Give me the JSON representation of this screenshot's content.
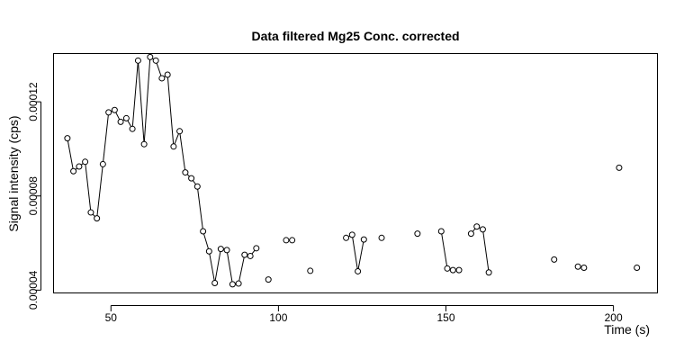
{
  "chart_data": {
    "type": "line",
    "title": "Data filtered Mg25 Conc. corrected",
    "xlabel": "Time (s)",
    "ylabel": "Signal intensity (cps)",
    "xlim": [
      33,
      213
    ],
    "ylim": [
      3.9e-05,
      0.0001403
    ],
    "xticks": [
      50,
      100,
      150,
      200
    ],
    "yticks": [
      4e-05,
      8e-05,
      0.00012
    ],
    "ytick_labels": [
      "0.00004",
      "0.00008",
      "0.00012"
    ],
    "grid": false,
    "legend": "none",
    "series": [
      {
        "name": "",
        "marker": "open-circle",
        "points": [
          [
            37.0,
            0.0001045
          ],
          [
            38.8,
            9.05e-05
          ],
          [
            40.5,
            9.25e-05
          ],
          [
            42.3,
            9.45e-05
          ],
          [
            44.0,
            7.3e-05
          ],
          [
            45.8,
            7.05e-05
          ],
          [
            47.6,
            9.35e-05
          ],
          [
            49.3,
            0.0001155
          ],
          [
            51.1,
            0.0001165
          ],
          [
            52.9,
            0.0001115
          ],
          [
            54.6,
            0.000113
          ],
          [
            56.4,
            0.0001085
          ],
          [
            58.1,
            0.0001375
          ],
          [
            59.9,
            0.000102
          ],
          [
            61.7,
            0.000139
          ],
          [
            63.4,
            0.0001375
          ],
          [
            65.2,
            0.00013
          ],
          [
            66.9,
            0.0001315
          ],
          [
            68.7,
            0.000101
          ],
          [
            70.5,
            0.0001075
          ],
          [
            72.2,
            9e-05
          ],
          [
            74.0,
            8.75e-05
          ],
          [
            75.8,
            8.4e-05
          ],
          [
            77.5,
            6.5e-05
          ],
          [
            79.3,
            5.65e-05
          ],
          [
            81.0,
            4.3e-05
          ],
          [
            82.8,
            5.75e-05
          ],
          [
            84.6,
            5.7e-05
          ],
          [
            86.3,
            4.25e-05
          ],
          [
            88.1,
            4.28e-05
          ],
          [
            89.9,
            5.5e-05
          ],
          [
            91.6,
            5.45e-05
          ],
          [
            93.4,
            5.78e-05
          ]
        ]
      },
      {
        "name": "",
        "marker": "open-circle",
        "points": [
          [
            97.0,
            4.45e-05
          ]
        ]
      },
      {
        "name": "",
        "marker": "open-circle",
        "points": [
          [
            102.3,
            6.12e-05
          ],
          [
            104.1,
            6.12e-05
          ]
        ]
      },
      {
        "name": "",
        "marker": "open-circle",
        "points": [
          [
            109.5,
            4.82e-05
          ]
        ]
      },
      {
        "name": "",
        "marker": "open-circle",
        "points": [
          [
            120.2,
            6.22e-05
          ],
          [
            122.0,
            6.35e-05
          ],
          [
            123.7,
            4.8e-05
          ],
          [
            125.5,
            6.15e-05
          ]
        ]
      },
      {
        "name": "",
        "marker": "open-circle",
        "points": [
          [
            130.8,
            6.22e-05
          ]
        ]
      },
      {
        "name": "",
        "marker": "open-circle",
        "points": [
          [
            141.5,
            6.4e-05
          ]
        ]
      },
      {
        "name": "",
        "marker": "open-circle",
        "points": [
          [
            148.6,
            6.5e-05
          ],
          [
            150.4,
            4.92e-05
          ],
          [
            152.1,
            4.85e-05
          ],
          [
            153.9,
            4.85e-05
          ]
        ]
      },
      {
        "name": "",
        "marker": "open-circle",
        "points": [
          [
            157.5,
            6.4e-05
          ],
          [
            159.2,
            6.7e-05
          ],
          [
            161.0,
            6.58e-05
          ],
          [
            162.8,
            4.75e-05
          ]
        ]
      },
      {
        "name": "",
        "marker": "open-circle",
        "points": [
          [
            182.3,
            5.3e-05
          ]
        ]
      },
      {
        "name": "",
        "marker": "open-circle",
        "points": [
          [
            189.4,
            5e-05
          ],
          [
            191.2,
            4.95e-05
          ]
        ]
      },
      {
        "name": "",
        "marker": "open-circle",
        "points": [
          [
            201.7,
            9.2e-05
          ]
        ]
      },
      {
        "name": "",
        "marker": "open-circle",
        "points": [
          [
            207.0,
            4.95e-05
          ]
        ]
      }
    ]
  }
}
